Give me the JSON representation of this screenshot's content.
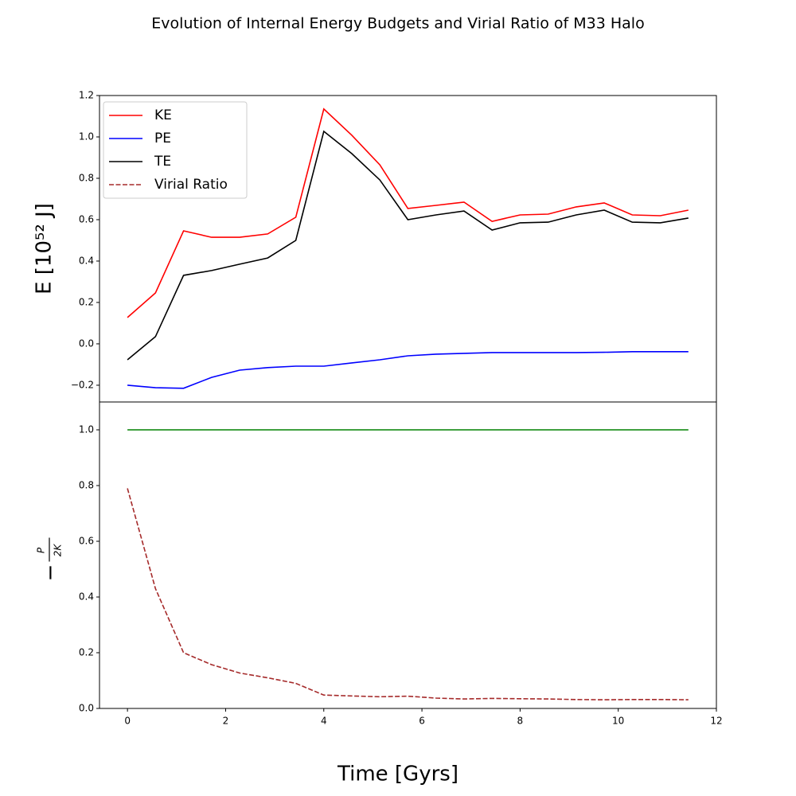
{
  "chart_data": [
    {
      "type": "line",
      "title": "Evolution of Internal Energy Budgets and Virial Ratio of M33 Halo",
      "y_label": "E [10⁵² J]",
      "x": [
        0,
        0.571,
        1.143,
        1.714,
        2.286,
        2.857,
        3.429,
        4.0,
        4.571,
        5.143,
        5.714,
        6.286,
        6.857,
        7.429,
        8.0,
        8.571,
        9.143,
        9.714,
        10.286,
        10.857,
        11.429
      ],
      "series": [
        {
          "name": "KE",
          "color": "red",
          "values": [
            0.127,
            0.246,
            0.546,
            0.515,
            0.515,
            0.531,
            0.612,
            1.135,
            1.008,
            0.865,
            0.654,
            0.669,
            0.685,
            0.592,
            0.623,
            0.627,
            0.662,
            0.681,
            0.623,
            0.619,
            0.646
          ]
        },
        {
          "name": "PE",
          "color": "blue",
          "values": [
            -0.2,
            -0.212,
            -0.215,
            -0.162,
            -0.127,
            -0.115,
            -0.108,
            -0.108,
            -0.092,
            -0.077,
            -0.058,
            -0.05,
            -0.046,
            -0.042,
            -0.042,
            -0.042,
            -0.042,
            -0.041,
            -0.038,
            -0.038,
            -0.038
          ]
        },
        {
          "name": "TE",
          "color": "black",
          "values": [
            -0.077,
            0.035,
            0.331,
            0.354,
            0.385,
            0.415,
            0.5,
            1.027,
            0.919,
            0.792,
            0.6,
            0.623,
            0.642,
            0.55,
            0.585,
            0.588,
            0.623,
            0.646,
            0.588,
            0.585,
            0.608
          ]
        }
      ],
      "xlim": [
        -0.57,
        12
      ],
      "ylim": [
        -0.281,
        1.2
      ],
      "yticks": [
        {
          "value": -0.2,
          "label": "−0.2"
        },
        {
          "value": 0,
          "label": "0.0"
        },
        0.2,
        0.4,
        0.6,
        0.8,
        {
          "value": 1,
          "label": "1.0"
        },
        1.2
      ],
      "legend": "upper left"
    },
    {
      "type": "line",
      "x_label": "Time [Gyrs]",
      "y_label": {
        "sign": "−",
        "numerator": "P",
        "denominator": "2K"
      },
      "x": [
        0,
        0.571,
        1.143,
        1.714,
        2.286,
        2.857,
        3.429,
        4.0,
        4.571,
        5.143,
        5.714,
        6.286,
        6.857,
        7.429,
        8.0,
        8.571,
        9.143,
        9.714,
        10.286,
        10.857,
        11.429
      ],
      "series": [
        {
          "name": "Virial Ratio",
          "color": "#a52a2a",
          "dashed": true,
          "values": [
            0.79,
            0.43,
            0.2,
            0.157,
            0.127,
            0.11,
            0.09,
            0.048,
            0.045,
            0.042,
            0.044,
            0.037,
            0.034,
            0.036,
            0.035,
            0.034,
            0.032,
            0.031,
            0.032,
            0.032,
            0.031
          ]
        },
        {
          "color": "green",
          "values": [
            1,
            1,
            1,
            1,
            1,
            1,
            1,
            1,
            1,
            1,
            1,
            1,
            1,
            1,
            1,
            1,
            1,
            1,
            1,
            1,
            1
          ]
        }
      ],
      "xlim": [
        -0.57,
        12
      ],
      "ylim": [
        0,
        1.1
      ],
      "xticks": [
        0,
        2,
        4,
        6,
        8,
        10,
        12
      ],
      "yticks": [
        {
          "value": 0,
          "label": "0.0"
        },
        0.2,
        0.4,
        0.6,
        0.8,
        {
          "value": 1,
          "label": "1.0"
        }
      ]
    }
  ]
}
